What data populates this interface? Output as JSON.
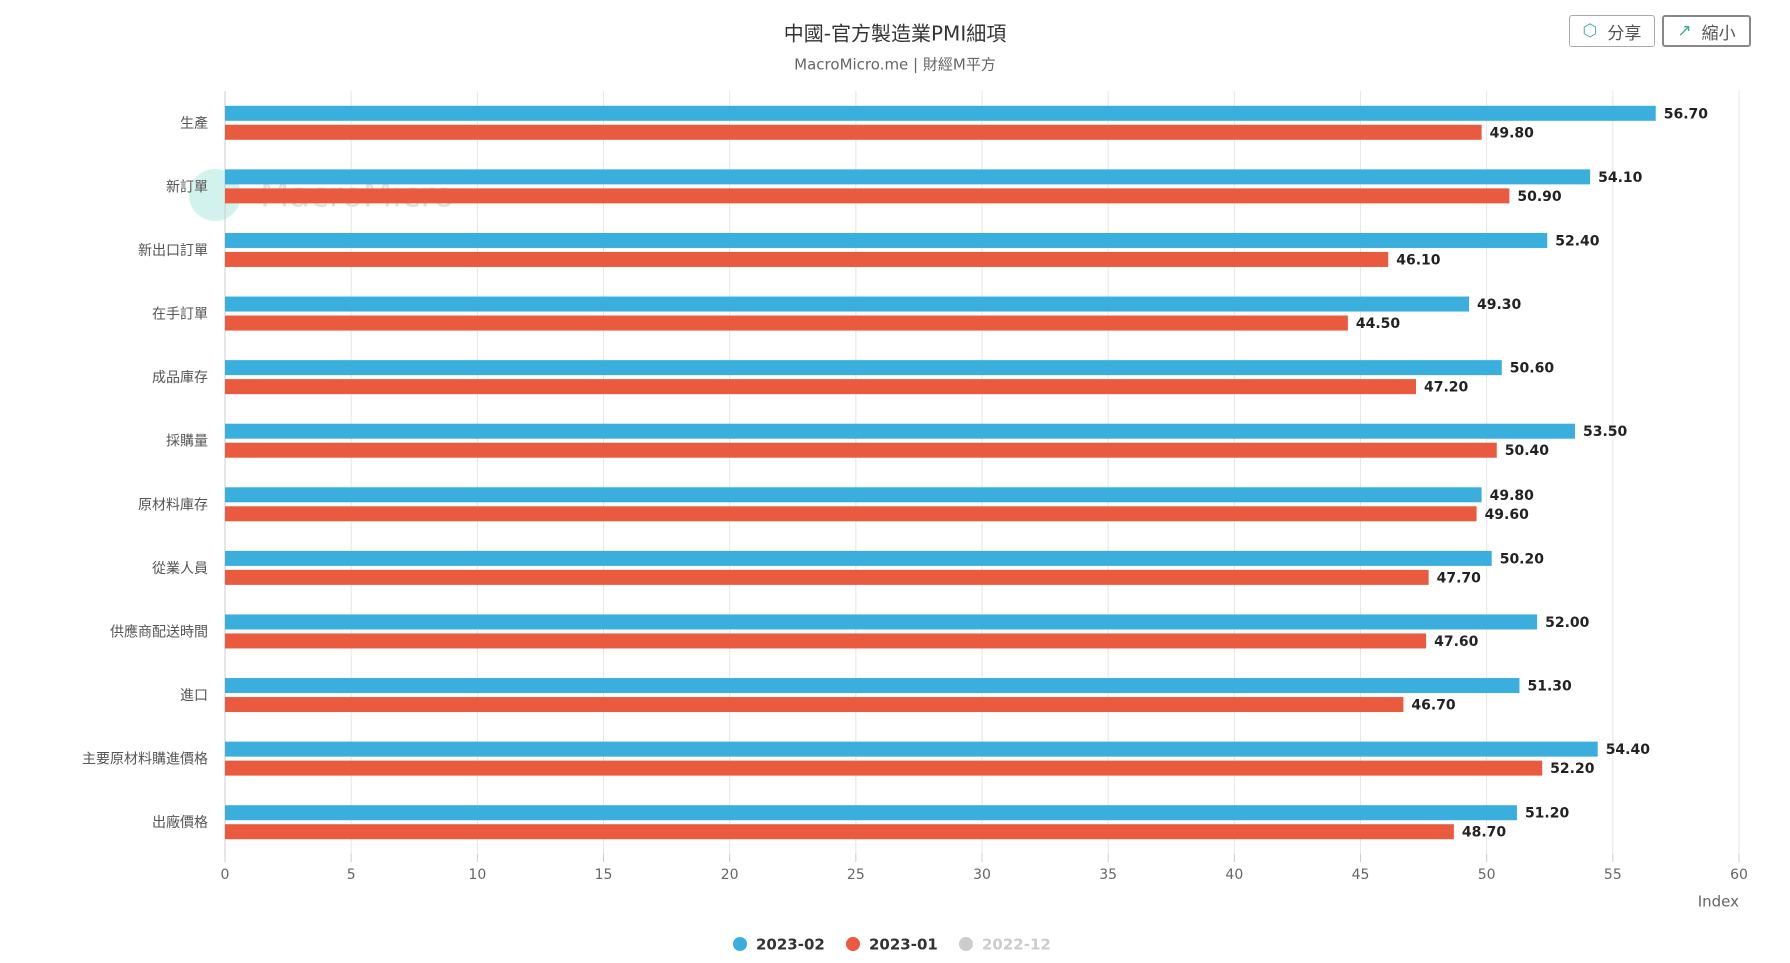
{
  "ui": {
    "buttons": [
      "分享",
      "縮小"
    ],
    "watermark": "MacroMicro"
  },
  "chart_data": {
    "type": "bar",
    "orientation": "horizontal",
    "title": "中國-官方製造業PMI細項",
    "subtitle": "MacroMicro.me | 財經M平方",
    "x_label": "Index",
    "categories": [
      "生產",
      "新訂單",
      "新出口訂單",
      "在手訂單",
      "成品庫存",
      "採購量",
      "原材料庫存",
      "從業人員",
      "供應商配送時間",
      "進口",
      "主要原材料購進價格",
      "出廠價格"
    ],
    "series": [
      {
        "name": "2023-02",
        "color": "#3aaedc",
        "visible": true,
        "values": [
          56.7,
          54.1,
          52.4,
          49.3,
          50.6,
          53.5,
          49.8,
          50.2,
          52.0,
          51.3,
          54.4,
          51.2
        ],
        "value_labels": [
          "56.70",
          "54.10",
          "52.40",
          "49.30",
          "50.60",
          "53.50",
          "49.80",
          "50.20",
          "52.00",
          "51.30",
          "54.40",
          "51.20"
        ]
      },
      {
        "name": "2023-01",
        "color": "#ea5a3e",
        "visible": true,
        "values": [
          49.8,
          50.9,
          46.1,
          44.5,
          47.2,
          50.4,
          49.6,
          47.7,
          47.6,
          46.7,
          52.2,
          48.7
        ],
        "value_labels": [
          "49.80",
          "50.90",
          "46.10",
          "44.50",
          "47.20",
          "50.40",
          "49.60",
          "47.70",
          "47.60",
          "46.70",
          "52.20",
          "48.70"
        ]
      },
      {
        "name": "2022-12",
        "color": "#cccccc",
        "visible": false,
        "values": [
          null,
          null,
          null,
          null,
          null,
          null,
          null,
          null,
          null,
          null,
          null,
          null
        ]
      }
    ],
    "xlim": [
      0,
      60
    ],
    "xticks": [
      0,
      5,
      10,
      15,
      20,
      25,
      30,
      35,
      40,
      45,
      50,
      55,
      60
    ],
    "grid": true
  }
}
